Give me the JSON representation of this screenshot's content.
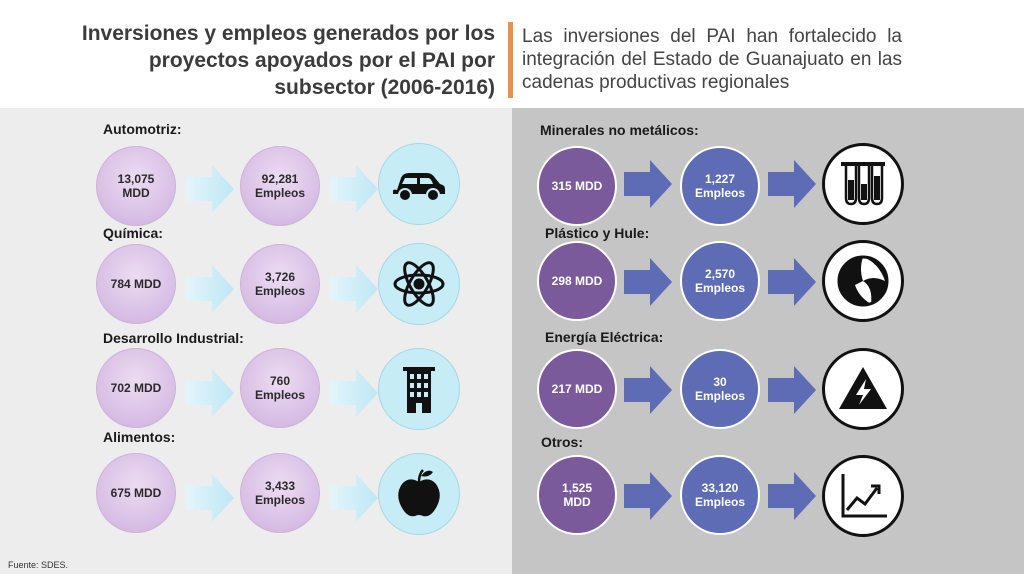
{
  "header": {
    "title": "Inversiones y empleos generados por los proyectos apoyados por el PAI por subsector (2006-2016)",
    "subtitle": "Las inversiones del PAI han fortalecido la integración del Estado de Guanajuato en las cadenas productivas regionales"
  },
  "left": {
    "rows": [
      {
        "label": "Automotriz:",
        "investment": "13,075\nMDD",
        "jobs": "92,281\nEmpleos",
        "icon": "car-icon"
      },
      {
        "label": "Química:",
        "investment": "784 MDD",
        "jobs": "3,726\nEmpleos",
        "icon": "atom-icon"
      },
      {
        "label": "Desarrollo Industrial:",
        "investment": "702 MDD",
        "jobs": "760\nEmpleos",
        "icon": "building-icon"
      },
      {
        "label": "Alimentos:",
        "investment": "675 MDD",
        "jobs": "3,433\nEmpleos",
        "icon": "apple-icon"
      }
    ]
  },
  "right": {
    "rows": [
      {
        "label": "Minerales no metálicos:",
        "investment": "315 MDD",
        "jobs": "1,227\nEmpleos",
        "icon": "test-tubes-icon"
      },
      {
        "label": "Plástico y Hule:",
        "investment": "298 MDD",
        "jobs": "2,570\nEmpleos",
        "icon": "beach-ball-icon"
      },
      {
        "label": "Energía Eléctrica:",
        "investment": "217 MDD",
        "jobs": "30\nEmpleos",
        "icon": "electricity-warning-icon"
      },
      {
        "label": "Otros:",
        "investment": "1,525\nMDD",
        "jobs": "33,120\nEmpleos",
        "icon": "growth-chart-icon"
      }
    ]
  },
  "footer": {
    "source": "Fuente: SDES."
  },
  "colors": {
    "left_panel": "#ededed",
    "right_panel": "#c5c5c5",
    "lavender_circle": "#d7bde4",
    "purple_circle": "#7b5a9b",
    "blue_circle": "#5d6cb5",
    "light_arrow": "#c9ecf8",
    "dark_arrow": "#5d6cb5",
    "accent_bar": "#e8914c"
  }
}
